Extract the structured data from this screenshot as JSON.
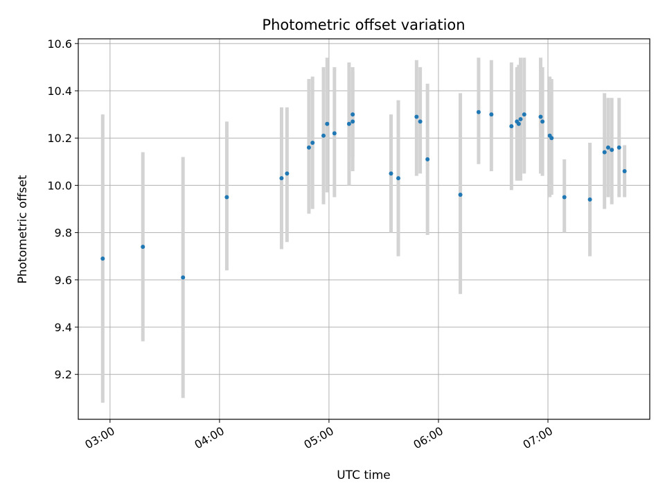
{
  "chart_data": {
    "type": "scatter",
    "title": "Photometric offset variation",
    "xlabel": "UTC time",
    "ylabel": "Photometric offset",
    "x_ticks": [
      "03:00",
      "04:00",
      "05:00",
      "06:00",
      "07:00"
    ],
    "x_tick_hours": [
      3,
      4,
      5,
      6,
      7
    ],
    "y_ticks": [
      "9.2",
      "9.4",
      "9.6",
      "9.8",
      "10.0",
      "10.2",
      "10.4",
      "10.6"
    ],
    "y_tick_values": [
      9.2,
      9.4,
      9.6,
      9.8,
      10.0,
      10.2,
      10.4,
      10.6
    ],
    "xlim_hours": [
      2.71,
      7.93
    ],
    "ylim": [
      9.01,
      10.62
    ],
    "grid": true,
    "colors": {
      "marker": "#1f77b4",
      "errorbar": "#d3d3d3",
      "grid": "#b0b0b0"
    },
    "points": [
      {
        "t": "02:56",
        "y": 9.69,
        "lo": 9.08,
        "hi": 10.3
      },
      {
        "t": "03:18",
        "y": 9.74,
        "lo": 9.34,
        "hi": 10.14
      },
      {
        "t": "03:40",
        "y": 9.61,
        "lo": 9.1,
        "hi": 10.12
      },
      {
        "t": "04:04",
        "y": 9.95,
        "lo": 9.64,
        "hi": 10.27
      },
      {
        "t": "04:34",
        "y": 10.03,
        "lo": 9.73,
        "hi": 10.33
      },
      {
        "t": "04:37",
        "y": 10.05,
        "lo": 9.76,
        "hi": 10.33
      },
      {
        "t": "04:49",
        "y": 10.16,
        "lo": 9.88,
        "hi": 10.45
      },
      {
        "t": "04:51",
        "y": 10.18,
        "lo": 9.9,
        "hi": 10.46
      },
      {
        "t": "04:57",
        "y": 10.21,
        "lo": 9.92,
        "hi": 10.5
      },
      {
        "t": "04:59",
        "y": 10.26,
        "lo": 9.97,
        "hi": 10.54
      },
      {
        "t": "05:03",
        "y": 10.22,
        "lo": 9.95,
        "hi": 10.5
      },
      {
        "t": "05:11",
        "y": 10.26,
        "lo": 10.0,
        "hi": 10.52
      },
      {
        "t": "05:13",
        "y": 10.3,
        "lo": 10.12,
        "hi": 10.5
      },
      {
        "t": "05:13",
        "y": 10.27,
        "lo": 10.06,
        "hi": 10.48
      },
      {
        "t": "05:34",
        "y": 10.05,
        "lo": 9.8,
        "hi": 10.3
      },
      {
        "t": "05:38",
        "y": 10.03,
        "lo": 9.7,
        "hi": 10.36
      },
      {
        "t": "05:48",
        "y": 10.29,
        "lo": 10.04,
        "hi": 10.53
      },
      {
        "t": "05:50",
        "y": 10.27,
        "lo": 10.05,
        "hi": 10.5
      },
      {
        "t": "05:54",
        "y": 10.11,
        "lo": 9.79,
        "hi": 10.43
      },
      {
        "t": "06:12",
        "y": 9.96,
        "lo": 9.54,
        "hi": 10.39
      },
      {
        "t": "06:22",
        "y": 10.31,
        "lo": 10.09,
        "hi": 10.54
      },
      {
        "t": "06:29",
        "y": 10.3,
        "lo": 10.06,
        "hi": 10.53
      },
      {
        "t": "06:40",
        "y": 10.25,
        "lo": 9.98,
        "hi": 10.52
      },
      {
        "t": "06:43",
        "y": 10.27,
        "lo": 10.02,
        "hi": 10.5
      },
      {
        "t": "06:44",
        "y": 10.26,
        "lo": 10.02,
        "hi": 10.51
      },
      {
        "t": "06:45",
        "y": 10.28,
        "lo": 10.02,
        "hi": 10.54
      },
      {
        "t": "06:47",
        "y": 10.3,
        "lo": 10.05,
        "hi": 10.54
      },
      {
        "t": "06:56",
        "y": 10.29,
        "lo": 10.05,
        "hi": 10.54
      },
      {
        "t": "06:57",
        "y": 10.27,
        "lo": 10.04,
        "hi": 10.5
      },
      {
        "t": "07:01",
        "y": 10.21,
        "lo": 9.95,
        "hi": 10.46
      },
      {
        "t": "07:02",
        "y": 10.2,
        "lo": 9.96,
        "hi": 10.45
      },
      {
        "t": "07:09",
        "y": 9.95,
        "lo": 9.8,
        "hi": 10.11
      },
      {
        "t": "07:23",
        "y": 9.94,
        "lo": 9.7,
        "hi": 10.18
      },
      {
        "t": "07:31",
        "y": 10.14,
        "lo": 9.9,
        "hi": 10.39
      },
      {
        "t": "07:33",
        "y": 10.16,
        "lo": 9.95,
        "hi": 10.37
      },
      {
        "t": "07:35",
        "y": 10.15,
        "lo": 9.92,
        "hi": 10.37
      },
      {
        "t": "07:39",
        "y": 10.16,
        "lo": 9.95,
        "hi": 10.37
      },
      {
        "t": "07:42",
        "y": 10.06,
        "lo": 9.95,
        "hi": 10.17
      }
    ]
  }
}
